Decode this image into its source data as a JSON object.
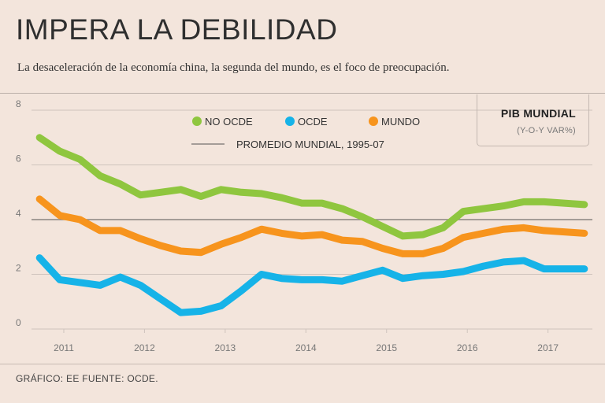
{
  "header": {
    "title": "IMPERA LA DEBILIDAD",
    "subtitle": "La desaceleración de la economía china, la segunda del mundo, es el foco de preocupación."
  },
  "pib": {
    "title": "PIB MUNDIAL",
    "subtitle": "(Y-O-Y VAR%)"
  },
  "footer": {
    "text": "GRÁFICO: EE  FUENTE: OCDE."
  },
  "colors": {
    "no_ocde": "#8fc63f",
    "ocde": "#16b3e8",
    "mundo": "#f7941d",
    "promedio": "#8a8480",
    "grid": "#cfc4bd"
  },
  "chart_data": {
    "type": "line",
    "title": "IMPERA LA DEBILIDAD",
    "subtitle": "La desaceleración de la economía china, la segunda del mundo, es el foco de preocupación.",
    "ylim": [
      0,
      8
    ],
    "yticks": [
      "0",
      "2",
      "4",
      "6",
      "8"
    ],
    "xlim": [
      2010.6,
      2017.55
    ],
    "xticks": [
      "2011",
      "2012",
      "2013",
      "2014",
      "2015",
      "2016",
      "2017"
    ],
    "grid": true,
    "legend": [
      {
        "label": "NO OCDE",
        "color": "#8fc63f"
      },
      {
        "label": "OCDE",
        "color": "#16b3e8"
      },
      {
        "label": "MUNDO",
        "color": "#f7941d"
      }
    ],
    "reference_line": {
      "label": "PROMEDIO MUNDIAL, 1995-07",
      "value": 4.0
    },
    "x": [
      2010.7,
      2010.95,
      2011.2,
      2011.45,
      2011.7,
      2011.95,
      2012.2,
      2012.45,
      2012.7,
      2012.95,
      2013.2,
      2013.45,
      2013.7,
      2013.95,
      2014.2,
      2014.45,
      2014.7,
      2014.95,
      2015.2,
      2015.45,
      2015.7,
      2015.95,
      2016.2,
      2016.45,
      2016.7,
      2016.95,
      2017.2,
      2017.45
    ],
    "series": [
      {
        "name": "NO OCDE",
        "values": [
          7.0,
          6.5,
          6.2,
          5.6,
          5.3,
          4.9,
          5.0,
          5.1,
          4.85,
          5.1,
          5.0,
          4.95,
          4.8,
          4.6,
          4.6,
          4.4,
          4.1,
          3.75,
          3.4,
          3.45,
          3.7,
          4.3,
          4.4,
          4.5,
          4.65,
          4.65,
          4.6,
          4.55
        ]
      },
      {
        "name": "OCDE",
        "values": [
          2.6,
          1.8,
          1.7,
          1.6,
          1.9,
          1.6,
          1.1,
          0.6,
          0.65,
          0.85,
          1.4,
          2.0,
          1.85,
          1.8,
          1.8,
          1.75,
          1.95,
          2.15,
          1.85,
          1.95,
          2.0,
          2.1,
          2.3,
          2.45,
          2.5,
          2.2,
          2.2,
          2.2
        ]
      },
      {
        "name": "MUNDO",
        "values": [
          4.75,
          4.15,
          4.0,
          3.6,
          3.6,
          3.3,
          3.05,
          2.85,
          2.8,
          3.1,
          3.35,
          3.65,
          3.5,
          3.4,
          3.45,
          3.25,
          3.2,
          2.95,
          2.75,
          2.75,
          2.95,
          3.35,
          3.5,
          3.65,
          3.7,
          3.6,
          3.55,
          3.5
        ]
      }
    ]
  }
}
